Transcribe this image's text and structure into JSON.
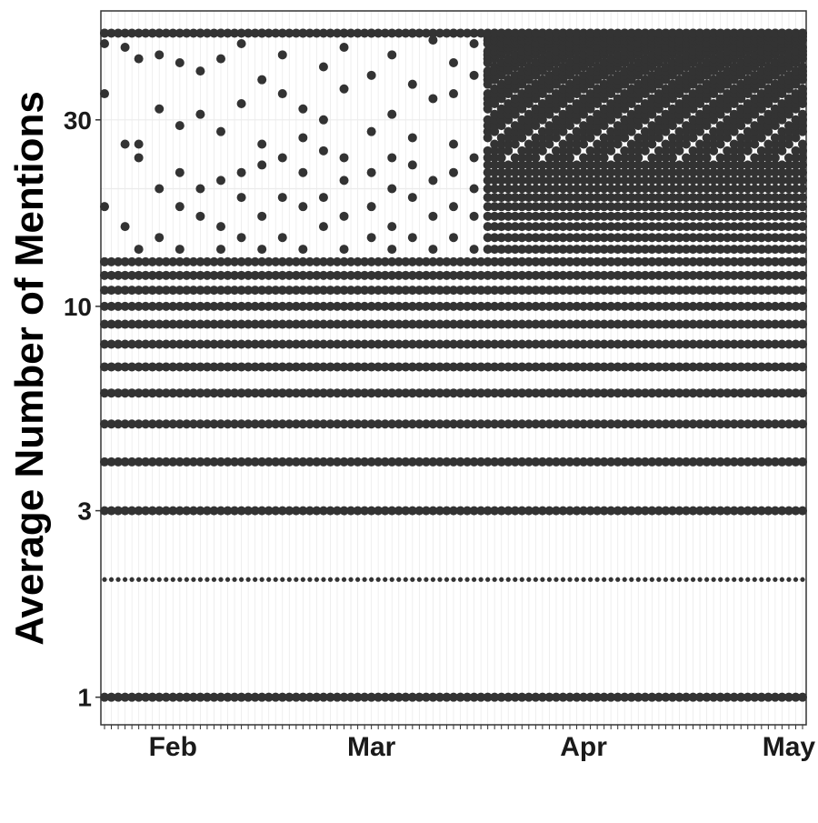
{
  "chart_data": {
    "type": "scatter",
    "title": "",
    "xlabel": "",
    "ylabel": "Average Number of Mentions",
    "y_scale": "log",
    "ylim": [
      0.85,
      57
    ],
    "xlim": [
      "2020-01-22",
      "2020-05-03"
    ],
    "y_ticks": [
      {
        "value": 1,
        "label": "1"
      },
      {
        "value": 3,
        "label": "3"
      },
      {
        "value": 10,
        "label": "10"
      },
      {
        "value": 30,
        "label": "30"
      }
    ],
    "x_ticks": [
      {
        "date": "2020-02-01",
        "label": "Feb"
      },
      {
        "date": "2020-03-01",
        "label": "Mar"
      },
      {
        "date": "2020-04-01",
        "label": "Apr"
      },
      {
        "date": "2020-05-01",
        "label": "May"
      }
    ],
    "grid": true,
    "legend": "none",
    "point_color": "#333333",
    "panel_border_color": "#333333",
    "grid_color": "#ebebeb",
    "series": [
      {
        "date_range": [
          "2020-01-22",
          "2020-05-03"
        ],
        "dense_levels": [
          1,
          2,
          3,
          4,
          5,
          6,
          7,
          8,
          9,
          10,
          11,
          12,
          13
        ],
        "sparse_points": [
          {
            "date": "2020-01-22",
            "values": [
              13,
              18,
              35,
              47,
              50
            ]
          },
          {
            "date": "2020-01-25",
            "values": [
              16,
              26,
              46
            ]
          },
          {
            "date": "2020-01-27",
            "values": [
              14,
              24,
              26,
              43
            ]
          },
          {
            "date": "2020-01-30",
            "values": [
              15,
              20,
              32,
              44,
              50
            ]
          },
          {
            "date": "2020-02-02",
            "values": [
              14,
              18,
              22,
              29,
              42
            ]
          },
          {
            "date": "2020-02-05",
            "values": [
              17,
              20,
              31,
              40,
              50
            ]
          },
          {
            "date": "2020-02-08",
            "values": [
              14,
              16,
              21,
              28,
              43,
              50
            ]
          },
          {
            "date": "2020-02-11",
            "values": [
              15,
              19,
              22,
              33,
              47
            ]
          },
          {
            "date": "2020-02-14",
            "values": [
              14,
              17,
              23,
              26,
              38,
              50
            ]
          },
          {
            "date": "2020-02-17",
            "values": [
              15,
              19,
              24,
              35,
              44
            ]
          },
          {
            "date": "2020-02-20",
            "values": [
              14,
              18,
              22,
              27,
              32,
              50
            ]
          },
          {
            "date": "2020-02-23",
            "values": [
              16,
              19,
              25,
              30,
              41
            ]
          },
          {
            "date": "2020-02-26",
            "values": [
              14,
              17,
              21,
              24,
              36,
              46,
              50
            ]
          },
          {
            "date": "2020-03-01",
            "values": [
              15,
              18,
              22,
              28,
              39,
              50
            ]
          },
          {
            "date": "2020-03-04",
            "values": [
              14,
              16,
              20,
              24,
              31,
              44
            ]
          },
          {
            "date": "2020-03-07",
            "values": [
              15,
              19,
              23,
              27,
              37,
              50
            ]
          },
          {
            "date": "2020-03-10",
            "values": [
              14,
              17,
              21,
              34,
              48
            ]
          },
          {
            "date": "2020-03-13",
            "values": [
              15,
              18,
              22,
              26,
              35,
              42,
              50
            ]
          },
          {
            "date": "2020-03-16",
            "values": [
              14,
              17,
              20,
              24,
              39,
              47
            ]
          }
        ],
        "dense_band_from": "2020-03-18",
        "dense_band_range": [
          13,
          50
        ],
        "dense_band_solid_range": [
          13,
          23
        ]
      }
    ]
  }
}
